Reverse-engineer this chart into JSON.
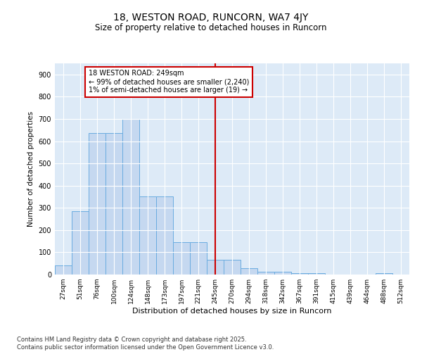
{
  "title1": "18, WESTON ROAD, RUNCORN, WA7 4JY",
  "title2": "Size of property relative to detached houses in Runcorn",
  "xlabel": "Distribution of detached houses by size in Runcorn",
  "ylabel": "Number of detached properties",
  "bar_color": "#c5d8f0",
  "bar_edge_color": "#6aace0",
  "bg_color": "#ddeaf7",
  "annotation_text": "18 WESTON ROAD: 249sqm\n← 99% of detached houses are smaller (2,240)\n1% of semi-detached houses are larger (19) →",
  "vline_color": "#cc0000",
  "categories": [
    "27sqm",
    "51sqm",
    "76sqm",
    "100sqm",
    "124sqm",
    "148sqm",
    "173sqm",
    "197sqm",
    "221sqm",
    "245sqm",
    "270sqm",
    "294sqm",
    "318sqm",
    "342sqm",
    "367sqm",
    "391sqm",
    "415sqm",
    "439sqm",
    "464sqm",
    "488sqm",
    "512sqm"
  ],
  "values": [
    42,
    285,
    635,
    635,
    700,
    350,
    350,
    145,
    145,
    65,
    65,
    30,
    12,
    12,
    5,
    5,
    0,
    0,
    0,
    6,
    0
  ],
  "ylim": [
    0,
    950
  ],
  "yticks": [
    0,
    100,
    200,
    300,
    400,
    500,
    600,
    700,
    800,
    900
  ],
  "vline_idx": 9,
  "footnote": "Contains HM Land Registry data © Crown copyright and database right 2025.\nContains public sector information licensed under the Open Government Licence v3.0.",
  "annotation_box_facecolor": "#ffffff",
  "annotation_box_edgecolor": "#cc0000"
}
